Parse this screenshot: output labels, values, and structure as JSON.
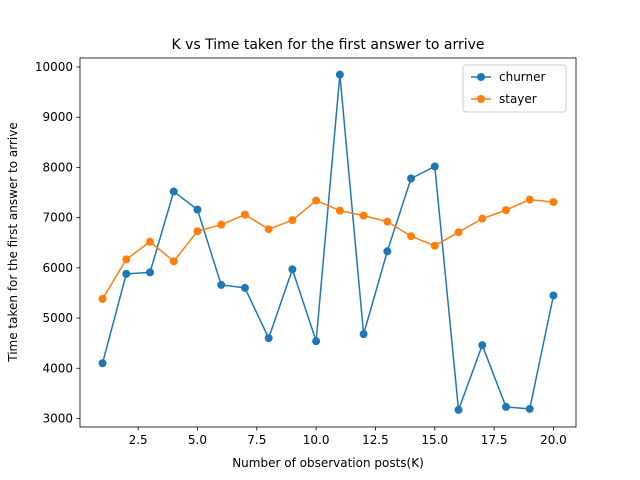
{
  "chart_data": {
    "type": "line",
    "title": "K vs Time taken for the first answer to arrive",
    "xlabel": "Number of observation posts(K)",
    "ylabel": "Time taken for the first answer to arrive",
    "xlim": [
      0.05,
      20.95
    ],
    "ylim": [
      2830,
      10180
    ],
    "xticks": [
      2.5,
      5.0,
      7.5,
      10.0,
      12.5,
      15.0,
      17.5,
      20.0
    ],
    "yticks": [
      3000,
      4000,
      5000,
      6000,
      7000,
      8000,
      9000,
      10000
    ],
    "legend_position": "top-right",
    "x": [
      1,
      2,
      3,
      4,
      5,
      6,
      7,
      8,
      9,
      10,
      11,
      12,
      13,
      14,
      15,
      16,
      17,
      18,
      19,
      20
    ],
    "series": [
      {
        "name": "churner",
        "color": "#1f77b4",
        "values": [
          4100,
          5880,
          5910,
          7520,
          7160,
          5660,
          5600,
          4600,
          5970,
          4540,
          9850,
          4680,
          6330,
          7780,
          8020,
          3170,
          4460,
          3230,
          3190,
          5450
        ]
      },
      {
        "name": "stayer",
        "color": "#ff7f0e",
        "values": [
          5380,
          6170,
          6520,
          6130,
          6730,
          6860,
          7060,
          6770,
          6950,
          7340,
          7140,
          7040,
          6920,
          6630,
          6440,
          6710,
          6980,
          7150,
          7360,
          7310
        ]
      }
    ]
  }
}
